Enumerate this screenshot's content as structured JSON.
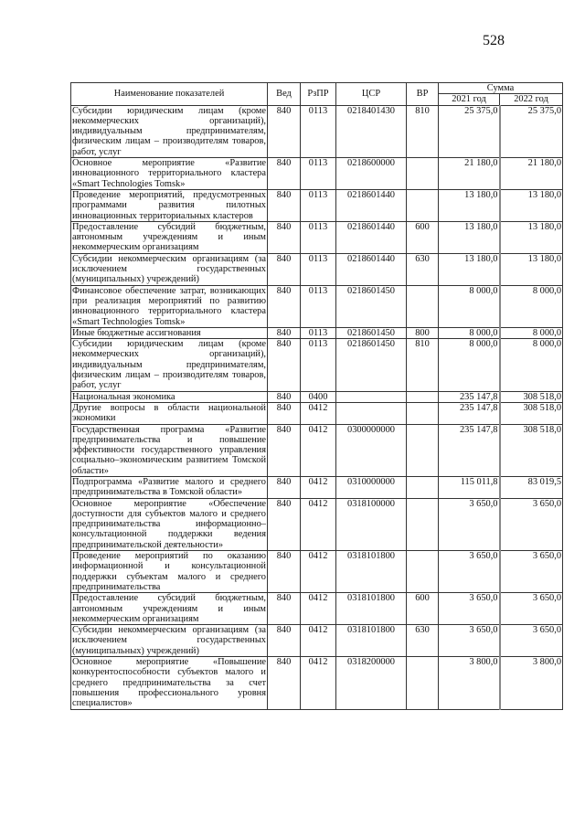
{
  "page_number": "528",
  "header": {
    "name": "Наименование показателей",
    "ved": "Вед",
    "rzpr": "РзПР",
    "csr": "ЦСР",
    "vr": "ВР",
    "sum": "Сумма",
    "y2021": "2021 год",
    "y2022": "2022 год"
  },
  "rows": [
    {
      "name": "Субсидии юридическим лицам (кроме некоммерческих организаций), индивидуальным предпринимателям, физическим лицам – производителям товаров, работ, услуг",
      "ved": "840",
      "rzpr": "0113",
      "csr": "0218401430",
      "vr": "810",
      "y2021": "25 375,0",
      "y2022": "25 375,0"
    },
    {
      "name": "Основное мероприятие «Развитие инновационного территориального кластера «Smart Technologies Tomsk»",
      "ved": "840",
      "rzpr": "0113",
      "csr": "0218600000",
      "vr": "",
      "y2021": "21 180,0",
      "y2022": "21 180,0"
    },
    {
      "name": "Проведение мероприятий, предусмотренных программами развития пилотных инновационных территориальных кластеров",
      "ved": "840",
      "rzpr": "0113",
      "csr": "0218601440",
      "vr": "",
      "y2021": "13 180,0",
      "y2022": "13 180,0"
    },
    {
      "name": "Предоставление субсидий бюджетным, автономным учреждениям и иным некоммерческим организациям",
      "ved": "840",
      "rzpr": "0113",
      "csr": "0218601440",
      "vr": "600",
      "y2021": "13 180,0",
      "y2022": "13 180,0"
    },
    {
      "name": "Субсидии некоммерческим организациям (за исключением государственных (муниципальных) учреждений)",
      "ved": "840",
      "rzpr": "0113",
      "csr": "0218601440",
      "vr": "630",
      "y2021": "13 180,0",
      "y2022": "13 180,0"
    },
    {
      "name": "Финансовое обеспечение затрат, возникающих при реализация мероприятий по развитию инновационного территориального кластера «Smart Technologies Tomsk»",
      "ved": "840",
      "rzpr": "0113",
      "csr": "0218601450",
      "vr": "",
      "y2021": "8 000,0",
      "y2022": "8 000,0"
    },
    {
      "name": "Иные бюджетные ассигнования",
      "ved": "840",
      "rzpr": "0113",
      "csr": "0218601450",
      "vr": "800",
      "y2021": "8 000,0",
      "y2022": "8 000,0"
    },
    {
      "name": "Субсидии юридическим лицам (кроме некоммерческих организаций), индивидуальным предпринимателям, физическим лицам – производителям товаров, работ, услуг",
      "ved": "840",
      "rzpr": "0113",
      "csr": "0218601450",
      "vr": "810",
      "y2021": "8 000,0",
      "y2022": "8 000,0"
    },
    {
      "name": "Национальная экономика",
      "ved": "840",
      "rzpr": "0400",
      "csr": "",
      "vr": "",
      "y2021": "235 147,8",
      "y2022": "308 518,0"
    },
    {
      "name": "Другие вопросы в области национальной экономики",
      "ved": "840",
      "rzpr": "0412",
      "csr": "",
      "vr": "",
      "y2021": "235 147,8",
      "y2022": "308 518,0"
    },
    {
      "name": "Государственная программа «Развитие предпринимательства и повышение эффективности государственного управления социально–экономическим развитием Томской области»",
      "ved": "840",
      "rzpr": "0412",
      "csr": "0300000000",
      "vr": "",
      "y2021": "235 147,8",
      "y2022": "308 518,0"
    },
    {
      "name": "Подпрограмма «Развитие малого и среднего предпринимательства в Томской области»",
      "ved": "840",
      "rzpr": "0412",
      "csr": "0310000000",
      "vr": "",
      "y2021": "115 011,8",
      "y2022": "83 019,5"
    },
    {
      "name": "Основное мероприятие «Обеспечение доступности для субъектов малого и среднего предпринимательства информационно–консультационной поддержки ведения предпринимательской деятельности»",
      "ved": "840",
      "rzpr": "0412",
      "csr": "0318100000",
      "vr": "",
      "y2021": "3 650,0",
      "y2022": "3 650,0"
    },
    {
      "name": "Проведение мероприятий по оказанию информационной и консультационной поддержки субъектам малого и среднего предпринимательства",
      "ved": "840",
      "rzpr": "0412",
      "csr": "0318101800",
      "vr": "",
      "y2021": "3 650,0",
      "y2022": "3 650,0"
    },
    {
      "name": "Предоставление субсидий бюджетным, автономным учреждениям и иным некоммерческим организациям",
      "ved": "840",
      "rzpr": "0412",
      "csr": "0318101800",
      "vr": "600",
      "y2021": "3 650,0",
      "y2022": "3 650,0"
    },
    {
      "name": "Субсидии некоммерческим организациям (за исключением государственных (муниципальных) учреждений)",
      "ved": "840",
      "rzpr": "0412",
      "csr": "0318101800",
      "vr": "630",
      "y2021": "3 650,0",
      "y2022": "3 650,0"
    },
    {
      "name": "Основное мероприятие «Повышение конкурентоспособности субъектов малого и среднего предпринимательства за счет повышения профессионального уровня специалистов»",
      "ved": "840",
      "rzpr": "0412",
      "csr": "0318200000",
      "vr": "",
      "y2021": "3 800,0",
      "y2022": "3 800,0"
    }
  ]
}
